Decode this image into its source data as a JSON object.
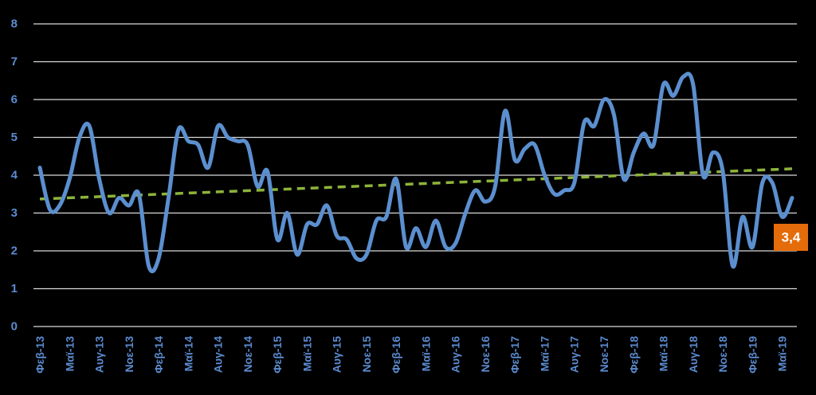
{
  "chart_data": {
    "type": "line",
    "ylim": [
      0,
      8
    ],
    "y_ticks": [
      "0",
      "1",
      "2",
      "3",
      "4",
      "5",
      "6",
      "7",
      "8"
    ],
    "x_tick_labels": [
      "Φεβ-13",
      "Μαϊ-13",
      "Αυγ-13",
      "Νοε-13",
      "Φεβ-14",
      "Μαϊ-14",
      "Αυγ-14",
      "Νοε-14",
      "Φεβ-15",
      "Μαϊ-15",
      "Αυγ-15",
      "Νοε-15",
      "Φεβ-16",
      "Μαϊ-16",
      "Αυγ-16",
      "Νοε-16",
      "Φεβ-17",
      "Μαϊ-17",
      "Αυγ-17",
      "Νοε-17",
      "Φεβ-18",
      "Μαϊ-18",
      "Αυγ-18",
      "Νοε-18",
      "Φεβ-19",
      "Μαϊ-19"
    ],
    "x": [
      "Φεβ-13",
      "Μαρ-13",
      "Απρ-13",
      "Μαϊ-13",
      "Ιουν-13",
      "Ιουλ-13",
      "Αυγ-13",
      "Σεπ-13",
      "Οκτ-13",
      "Νοε-13",
      "Δεκ-13",
      "Ιαν-14",
      "Φεβ-14",
      "Μαρ-14",
      "Απρ-14",
      "Μαϊ-14",
      "Ιουν-14",
      "Ιουλ-14",
      "Αυγ-14",
      "Σεπ-14",
      "Οκτ-14",
      "Νοε-14",
      "Δεκ-14",
      "Ιαν-15",
      "Φεβ-15",
      "Μαρ-15",
      "Απρ-15",
      "Μαϊ-15",
      "Ιουν-15",
      "Ιουλ-15",
      "Αυγ-15",
      "Σεπ-15",
      "Οκτ-15",
      "Νοε-15",
      "Δεκ-15",
      "Ιαν-16",
      "Φεβ-16",
      "Μαρ-16",
      "Απρ-16",
      "Μαϊ-16",
      "Ιουν-16",
      "Ιουλ-16",
      "Αυγ-16",
      "Σεπ-16",
      "Οκτ-16",
      "Νοε-16",
      "Δεκ-16",
      "Ιαν-17",
      "Φεβ-17",
      "Μαρ-17",
      "Απρ-17",
      "Μαϊ-17",
      "Ιουν-17",
      "Ιουλ-17",
      "Αυγ-17",
      "Σεπ-17",
      "Οκτ-17",
      "Νοε-17",
      "Δεκ-17",
      "Ιαν-18",
      "Φεβ-18",
      "Μαρ-18",
      "Απρ-18",
      "Μαϊ-18",
      "Ιουν-18",
      "Ιουλ-18",
      "Αυγ-18",
      "Σεπ-18",
      "Οκτ-18",
      "Νοε-18",
      "Δεκ-18",
      "Ιαν-19",
      "Φεβ-19",
      "Μαρ-19",
      "Απρ-19",
      "Μαϊ-19",
      "Ιουν-19"
    ],
    "series": [
      {
        "color": "#5b8fcf",
        "values": [
          4.2,
          3.1,
          3.2,
          3.9,
          5.0,
          5.3,
          3.9,
          3.0,
          3.4,
          3.2,
          3.5,
          1.6,
          1.8,
          3.4,
          5.2,
          4.9,
          4.8,
          4.2,
          5.3,
          5.0,
          4.9,
          4.8,
          3.7,
          4.1,
          2.3,
          3.0,
          1.9,
          2.7,
          2.7,
          3.2,
          2.4,
          2.3,
          1.8,
          1.9,
          2.8,
          2.9,
          3.9,
          2.1,
          2.6,
          2.1,
          2.8,
          2.1,
          2.2,
          3.0,
          3.6,
          3.3,
          3.7,
          5.7,
          4.4,
          4.7,
          4.8,
          4.0,
          3.5,
          3.6,
          3.8,
          5.4,
          5.3,
          6.0,
          5.6,
          3.9,
          4.6,
          5.1,
          4.8,
          6.4,
          6.1,
          6.6,
          6.4,
          4.0,
          4.6,
          4.1,
          1.6,
          2.9,
          2.1,
          3.8,
          3.8,
          2.9,
          3.4
        ]
      }
    ],
    "trendline": {
      "color": "#8db33b",
      "style": "dashed",
      "start": 3.37,
      "end": 4.17
    },
    "last_value_label": "3,4",
    "label_color": "#e46c0a",
    "grid": true,
    "background": "#000000"
  }
}
